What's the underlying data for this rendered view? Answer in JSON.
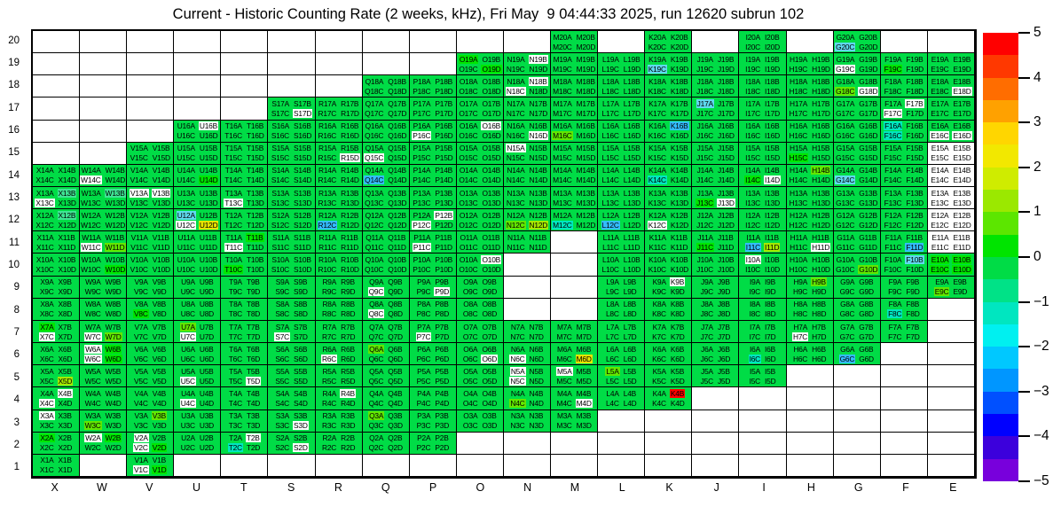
{
  "chart_data": {
    "type": "heatmap",
    "title": "Current - Historic Counting Rate (2 weeks, kHz), Fri May  9 04:44:33 2025, run 12620 subrun 102",
    "units": "kHz",
    "x_categories": [
      "X",
      "W",
      "V",
      "U",
      "T",
      "S",
      "R",
      "Q",
      "P",
      "O",
      "N",
      "M",
      "L",
      "K",
      "J",
      "I",
      "H",
      "G",
      "F",
      "E"
    ],
    "y_categories": [
      "20",
      "19",
      "18",
      "17",
      "16",
      "15",
      "14",
      "13",
      "12",
      "11",
      "10",
      "9",
      "8",
      "7",
      "6",
      "5",
      "4",
      "3",
      "2",
      "1"
    ],
    "subcell_order": [
      "A",
      "B",
      "C",
      "D"
    ],
    "colorbar": {
      "min": -5,
      "max": 5,
      "tick_values": [
        5,
        4,
        3,
        2,
        1,
        0,
        -1,
        -2,
        -3,
        -4,
        -5
      ],
      "tick_labels": [
        "5",
        "4",
        "3",
        "2",
        "1",
        "0",
        "−1",
        "−2",
        "−3",
        "−4",
        "−5"
      ],
      "band_colors_top_to_bottom": [
        "#FF0000",
        "#FF3800",
        "#FF6D00",
        "#FFA100",
        "#FFD600",
        "#F2E800",
        "#CFEC00",
        "#9BE800",
        "#5CE600",
        "#00E400",
        "#00DC46",
        "#00E287",
        "#00E6C0",
        "#00F0F0",
        "#00C8FF",
        "#0096FF",
        "#0050FF",
        "#0000FF",
        "#3C00DC",
        "#7800DC"
      ]
    },
    "palette": {
      "g": "#00DC46",
      "bg": "#00E600",
      "lg": "#62E600",
      "yg": "#A5E800",
      "y": "#E8E400",
      "tg": "#3FE594",
      "tc": "#00E6C0",
      "c": "#5FD9EE",
      "cb": "#33BDFF",
      "r": "#FF0000",
      "w": "#FFFFFF"
    },
    "palette_value_bands": {
      "g": "0 to -0.5",
      "bg": "0 to +0.5",
      "lg": "+1 to +1.5",
      "yg": "+1.5 to +2",
      "y": "+2 to +2.5",
      "tg": "-0.5 to -1",
      "tc": "-1 to -1.5",
      "c": "-1.5 to -2",
      "cb": "-2 to -2.5",
      "r": "+4.5 to +5",
      "w": "no data"
    },
    "default_color": "g",
    "present_cells_by_row": {
      "20": [
        "M",
        "K",
        "I",
        "G"
      ],
      "19": [
        "O",
        "N",
        "M",
        "L",
        "K",
        "J",
        "I",
        "H",
        "G",
        "F",
        "E"
      ],
      "18": [
        "Q",
        "P",
        "O",
        "N",
        "M",
        "L",
        "K",
        "J",
        "I",
        "H",
        "G",
        "F",
        "E"
      ],
      "17": [
        "S",
        "R",
        "Q",
        "P",
        "O",
        "N",
        "M",
        "L",
        "K",
        "J",
        "I",
        "H",
        "G",
        "F",
        "E"
      ],
      "16": [
        "U",
        "T",
        "S",
        "R",
        "Q",
        "P",
        "O",
        "N",
        "M",
        "L",
        "K",
        "J",
        "I",
        "H",
        "G",
        "F",
        "E"
      ],
      "15": [
        "V",
        "U",
        "T",
        "S",
        "R",
        "Q",
        "P",
        "O",
        "N",
        "M",
        "L",
        "K",
        "J",
        "I",
        "H",
        "G",
        "F",
        "E"
      ],
      "14": [
        "X",
        "W",
        "V",
        "U",
        "T",
        "S",
        "R",
        "Q",
        "P",
        "O",
        "N",
        "M",
        "L",
        "K",
        "J",
        "I",
        "H",
        "G",
        "F",
        "E"
      ],
      "13": [
        "X",
        "W",
        "V",
        "U",
        "T",
        "S",
        "R",
        "Q",
        "P",
        "O",
        "N",
        "M",
        "L",
        "K",
        "J",
        "I",
        "H",
        "G",
        "F",
        "E"
      ],
      "12": [
        "X",
        "W",
        "V",
        "U",
        "T",
        "S",
        "R",
        "Q",
        "P",
        "O",
        "N",
        "M",
        "L",
        "K",
        "J",
        "I",
        "H",
        "G",
        "F",
        "E"
      ],
      "11": [
        "X",
        "W",
        "V",
        "U",
        "T",
        "S",
        "R",
        "Q",
        "P",
        "O",
        "N",
        "L",
        "K",
        "J",
        "I",
        "H",
        "G",
        "F",
        "E"
      ],
      "10": [
        "X",
        "W",
        "V",
        "U",
        "T",
        "S",
        "R",
        "Q",
        "P",
        "O",
        "L",
        "K",
        "J",
        "I",
        "H",
        "G",
        "F",
        "E"
      ],
      "9": [
        "X",
        "W",
        "V",
        "U",
        "T",
        "S",
        "R",
        "Q",
        "P",
        "O",
        "L",
        "K",
        "J",
        "I",
        "H",
        "G",
        "F",
        "E"
      ],
      "8": [
        "X",
        "W",
        "V",
        "U",
        "T",
        "S",
        "R",
        "Q",
        "P",
        "O",
        "L",
        "K",
        "J",
        "I",
        "H",
        "G",
        "F"
      ],
      "7": [
        "X",
        "W",
        "V",
        "U",
        "T",
        "S",
        "R",
        "Q",
        "P",
        "O",
        "N",
        "M",
        "L",
        "K",
        "J",
        "I",
        "H",
        "G",
        "F"
      ],
      "6": [
        "X",
        "W",
        "V",
        "U",
        "T",
        "S",
        "R",
        "Q",
        "P",
        "O",
        "N",
        "M",
        "L",
        "K",
        "J",
        "I",
        "H",
        "G"
      ],
      "5": [
        "X",
        "W",
        "V",
        "U",
        "T",
        "S",
        "R",
        "Q",
        "P",
        "O",
        "N",
        "M",
        "L",
        "K",
        "J",
        "I"
      ],
      "4": [
        "X",
        "W",
        "V",
        "U",
        "T",
        "S",
        "R",
        "Q",
        "P",
        "O",
        "N",
        "M",
        "L",
        "K"
      ],
      "3": [
        "X",
        "W",
        "V",
        "U",
        "T",
        "S",
        "R",
        "Q",
        "P",
        "O",
        "N",
        "M"
      ],
      "2": [
        "X",
        "W",
        "V",
        "U",
        "T",
        "S",
        "R",
        "Q",
        "P"
      ],
      "1": [
        "X",
        "V"
      ]
    },
    "subcell_color_overrides": {
      "G20C": "c",
      "O19A": "bg",
      "O19D": "bg",
      "N19B": "w",
      "K19C": "c",
      "G19C": "w",
      "F19C": "bg",
      "N18B": "w",
      "N18C": "w",
      "G18C": "lg",
      "G18D": "w",
      "E18D": "w",
      "S17D": "w",
      "J17A": "c",
      "F17B": "w",
      "F17C": "w",
      "U16B": "w",
      "P16C": "w",
      "O16B": "w",
      "N16D": "w",
      "M16C": "lg",
      "K16B": "cb",
      "F16A": "tc",
      "F16C": "tc",
      "E16C": "w",
      "E16D": "w",
      "R15D": "w",
      "Q15C": "w",
      "N15A": "w",
      "H15C": "bg",
      "E15A": "w",
      "E15B": "w",
      "E15C": "w",
      "E15D": "w",
      "W14C": "w",
      "U14D": "bg",
      "Q14C": "cb",
      "K14C": "tc",
      "I14C": "bg",
      "I14D": "w",
      "H14B": "lg",
      "G14C": "c",
      "E14A": "w",
      "E14B": "w",
      "E14C": "w",
      "E14D": "w",
      "X13B": "tg",
      "X13C": "w",
      "W13B": "tg",
      "V13A": "w",
      "V13B": "w",
      "T13C": "w",
      "J13C": "bg",
      "J13D": "w",
      "E13A": "w",
      "E13B": "w",
      "E13C": "w",
      "E13D": "w",
      "X12B": "tg",
      "U12A": "c",
      "U12C": "w",
      "U12D": "y",
      "R12C": "cb",
      "P12B": "w",
      "P12C": "w",
      "N12C": "lg",
      "N12D": "yg",
      "M12C": "tc",
      "L12C": "cb",
      "K12C": "w",
      "E12A": "w",
      "E12B": "w",
      "E12C": "w",
      "E12D": "w",
      "W11C": "w",
      "W11D": "lg",
      "T11B": "bg",
      "T11C": "w",
      "P11C": "w",
      "J11C": "bg",
      "I11C": "cb",
      "I11D": "yg",
      "H11D": "w",
      "F11D": "cb",
      "E11A": "w",
      "E11B": "w",
      "E11C": "w",
      "E11D": "w",
      "W10D": "bg",
      "T10C": "bg",
      "O10B": "w",
      "I10A": "w",
      "G10D": "lg",
      "F10B": "c",
      "E10A": "bg",
      "E10B": "bg",
      "E10C": "bg",
      "E10D": "bg",
      "Q9C": "w",
      "P9D": "w",
      "K9B": "w",
      "H9B": "lg",
      "E9C": "lg",
      "V8C": "bg",
      "Q8C": "w",
      "F8C": "tc",
      "X7A": "bg",
      "X7C": "w",
      "W7C": "w",
      "W7D": "lg",
      "U7A": "lg",
      "U7C": "w",
      "S7C": "w",
      "P7C": "w",
      "H7C": "w",
      "W6A": "w",
      "W6B": "bg",
      "W6C": "w",
      "W6D": "bg",
      "R6C": "w",
      "Q6A": "lg",
      "O6D": "w",
      "N6C": "w",
      "M6D": "y",
      "I6C": "tc",
      "G6C": "cb",
      "X5D": "yg",
      "U5C": "w",
      "T5D": "w",
      "N5A": "w",
      "N5C": "w",
      "M5A": "w",
      "L5A": "lg",
      "X4B": "w",
      "X4C": "w",
      "U4C": "w",
      "R4B": "w",
      "N4C": "lg",
      "M4D": "w",
      "K4B": "r",
      "X3A": "w",
      "W3C": "lg",
      "V3B": "lg",
      "S3D": "w",
      "Q3A": "lg",
      "X2A": "bg",
      "W2A": "w",
      "W2B": "bg",
      "V2A": "w",
      "V2C": "w",
      "V2D": "bg",
      "T2B": "w",
      "T2C": "tc",
      "S2D": "w",
      "V1C": "w",
      "V1D": "bg"
    }
  }
}
